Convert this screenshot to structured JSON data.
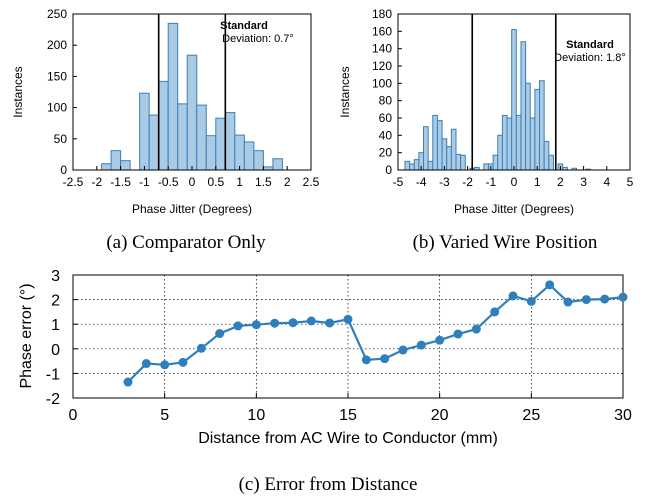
{
  "chart_data": [
    {
      "type": "bar",
      "xlabel": "Phase Jitter (Degrees)",
      "ylabel": "Instances",
      "xlim": [
        -2.5,
        2.5
      ],
      "ylim": [
        0,
        250
      ],
      "xticks": [
        "-2.5",
        "-2",
        "-1.5",
        "-1",
        "-0.5",
        "0",
        "0.5",
        "1",
        "1.5",
        "2",
        "2.5"
      ],
      "yticks": [
        "0",
        "50",
        "100",
        "150",
        "200",
        "250"
      ],
      "bin_width": 0.2,
      "bins": [
        {
          "x": -1.8,
          "value": 10
        },
        {
          "x": -1.6,
          "value": 31
        },
        {
          "x": -1.4,
          "value": 15
        },
        {
          "x": -1.2,
          "value": 0
        },
        {
          "x": -1.0,
          "value": 123
        },
        {
          "x": -0.8,
          "value": 88
        },
        {
          "x": -0.6,
          "value": 142
        },
        {
          "x": -0.4,
          "value": 235
        },
        {
          "x": -0.2,
          "value": 106
        },
        {
          "x": 0.0,
          "value": 184
        },
        {
          "x": 0.2,
          "value": 104
        },
        {
          "x": 0.4,
          "value": 55
        },
        {
          "x": 0.6,
          "value": 83
        },
        {
          "x": 0.8,
          "value": 92
        },
        {
          "x": 1.0,
          "value": 56
        },
        {
          "x": 1.2,
          "value": 45
        },
        {
          "x": 1.4,
          "value": 31
        },
        {
          "x": 1.6,
          "value": 5
        },
        {
          "x": 1.8,
          "value": 18
        }
      ],
      "std_lines": [
        -0.7,
        0.7
      ],
      "annotation": {
        "title": "Standard",
        "text": "Deviation: 0.7°"
      },
      "caption": "(a) Comparator Only"
    },
    {
      "type": "bar",
      "xlabel": "Phase Jitter (Degrees)",
      "ylabel": "Instances",
      "xlim": [
        -5,
        5
      ],
      "ylim": [
        0,
        180
      ],
      "xticks": [
        "-5",
        "-4",
        "-3",
        "-2",
        "-1",
        "0",
        "1",
        "2",
        "3",
        "4",
        "5"
      ],
      "yticks": [
        "0",
        "20",
        "40",
        "60",
        "80",
        "100",
        "120",
        "140",
        "160",
        "180"
      ],
      "bin_width": 0.2,
      "bins": [
        {
          "x": -4.6,
          "value": 10
        },
        {
          "x": -4.4,
          "value": 7
        },
        {
          "x": -4.2,
          "value": 12
        },
        {
          "x": -4.0,
          "value": 20
        },
        {
          "x": -3.8,
          "value": 50
        },
        {
          "x": -3.6,
          "value": 10
        },
        {
          "x": -3.4,
          "value": 63
        },
        {
          "x": -3.2,
          "value": 57
        },
        {
          "x": -3.0,
          "value": 36
        },
        {
          "x": -2.8,
          "value": 27
        },
        {
          "x": -2.6,
          "value": 47
        },
        {
          "x": -2.4,
          "value": 18
        },
        {
          "x": -2.2,
          "value": 17
        },
        {
          "x": -1.8,
          "value": 2
        },
        {
          "x": -1.6,
          "value": 3
        },
        {
          "x": -1.2,
          "value": 7
        },
        {
          "x": -1.0,
          "value": 7
        },
        {
          "x": -0.8,
          "value": 17
        },
        {
          "x": -0.6,
          "value": 40
        },
        {
          "x": -0.4,
          "value": 63
        },
        {
          "x": -0.2,
          "value": 60
        },
        {
          "x": 0.0,
          "value": 162
        },
        {
          "x": 0.2,
          "value": 63
        },
        {
          "x": 0.4,
          "value": 148
        },
        {
          "x": 0.6,
          "value": 100
        },
        {
          "x": 0.8,
          "value": 60
        },
        {
          "x": 1.0,
          "value": 93
        },
        {
          "x": 1.2,
          "value": 103
        },
        {
          "x": 1.4,
          "value": 33
        },
        {
          "x": 1.6,
          "value": 17
        },
        {
          "x": 2.0,
          "value": 7
        },
        {
          "x": 2.2,
          "value": 3
        },
        {
          "x": 2.6,
          "value": 2
        },
        {
          "x": 3.2,
          "value": 1
        }
      ],
      "std_lines": [
        -1.8,
        1.8
      ],
      "annotation": {
        "title": "Standard",
        "text": "Deviation: 1.8°"
      },
      "caption": "(b) Varied Wire Position"
    },
    {
      "type": "line",
      "xlabel": "Distance from AC Wire to Conductor (mm)",
      "ylabel": "Phase error (°)",
      "xlim": [
        0,
        30
      ],
      "ylim": [
        -2,
        3
      ],
      "xticks": [
        "0",
        "5",
        "10",
        "15",
        "20",
        "25",
        "30"
      ],
      "yticks": [
        "-2",
        "-1",
        "0",
        "1",
        "2",
        "3"
      ],
      "grid": true,
      "x": [
        3,
        4,
        5,
        6,
        7,
        8,
        9,
        10,
        11,
        12,
        13,
        14,
        15,
        16,
        17,
        18,
        19,
        20,
        21,
        22,
        23,
        24,
        25,
        26,
        27,
        28,
        29,
        30
      ],
      "y": [
        -1.35,
        -0.6,
        -0.65,
        -0.55,
        0.02,
        0.62,
        0.93,
        0.98,
        1.04,
        1.06,
        1.13,
        1.05,
        1.2,
        -0.45,
        -0.4,
        -0.05,
        0.15,
        0.35,
        0.6,
        0.8,
        1.5,
        2.15,
        1.93,
        2.6,
        1.9,
        2.0,
        2.02,
        2.1
      ],
      "caption": "(c) Error from Distance"
    }
  ]
}
